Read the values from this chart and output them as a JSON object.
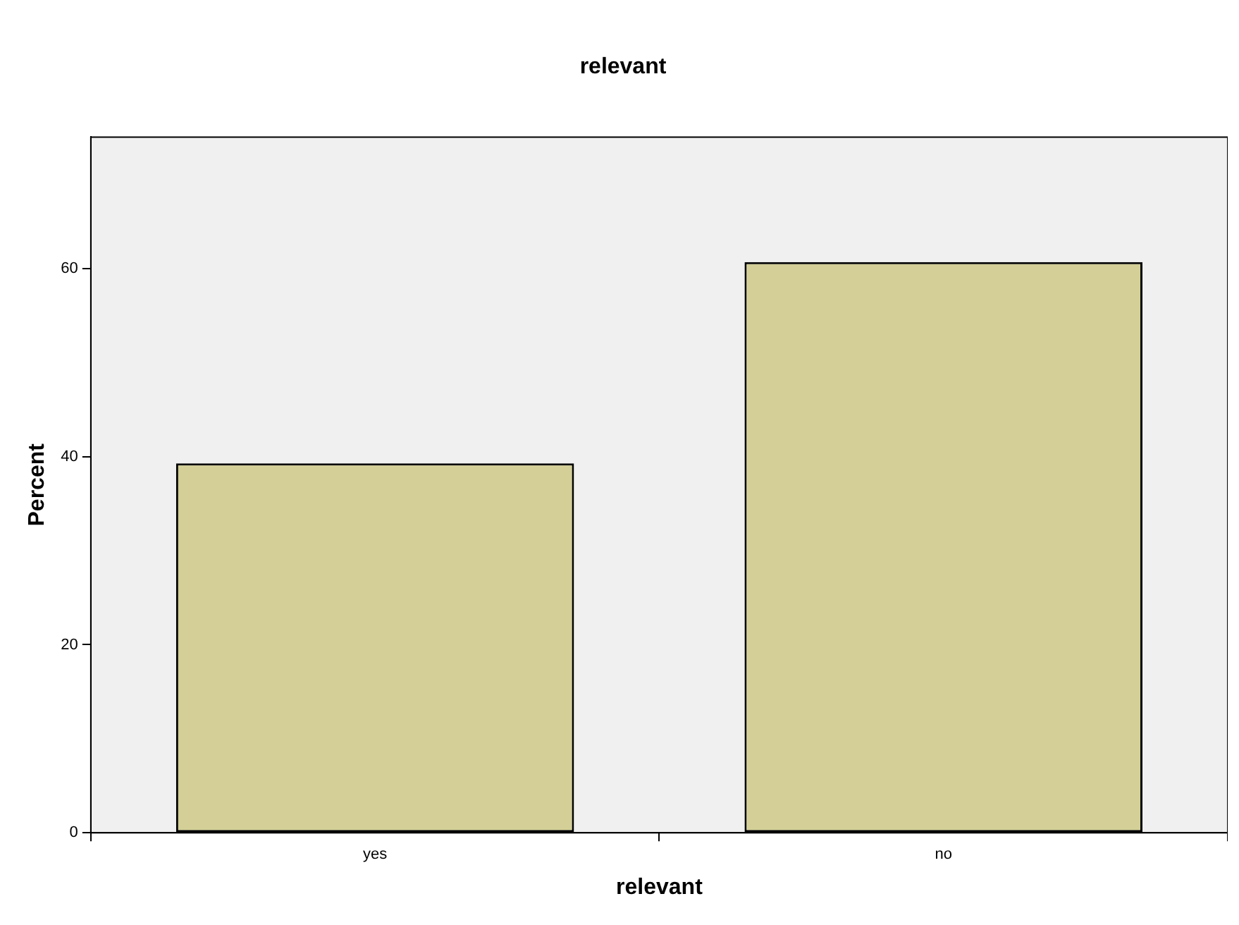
{
  "chart_data": {
    "type": "bar",
    "title": "relevant",
    "xlabel": "relevant",
    "ylabel": "Percent",
    "categories": [
      "yes",
      "no"
    ],
    "values": [
      39.3,
      60.7
    ],
    "color": "#d3cf96",
    "ylim": [
      0,
      74
    ],
    "yticks": [
      0,
      20,
      40,
      60
    ],
    "grid": false,
    "legend": false
  }
}
